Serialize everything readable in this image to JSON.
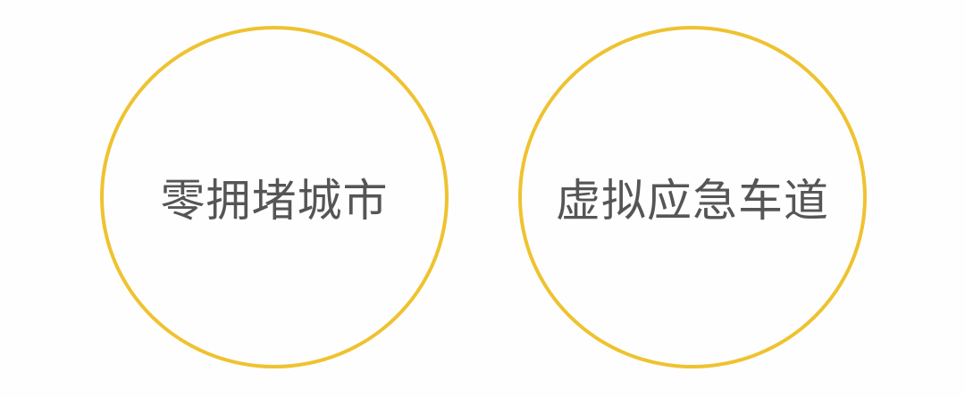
{
  "circles": [
    {
      "label": "零拥堵城市"
    },
    {
      "label": "虚拟应急车道"
    }
  ],
  "colors": {
    "ring": "#efc22f",
    "text": "#555555",
    "background": "#fefefe"
  }
}
